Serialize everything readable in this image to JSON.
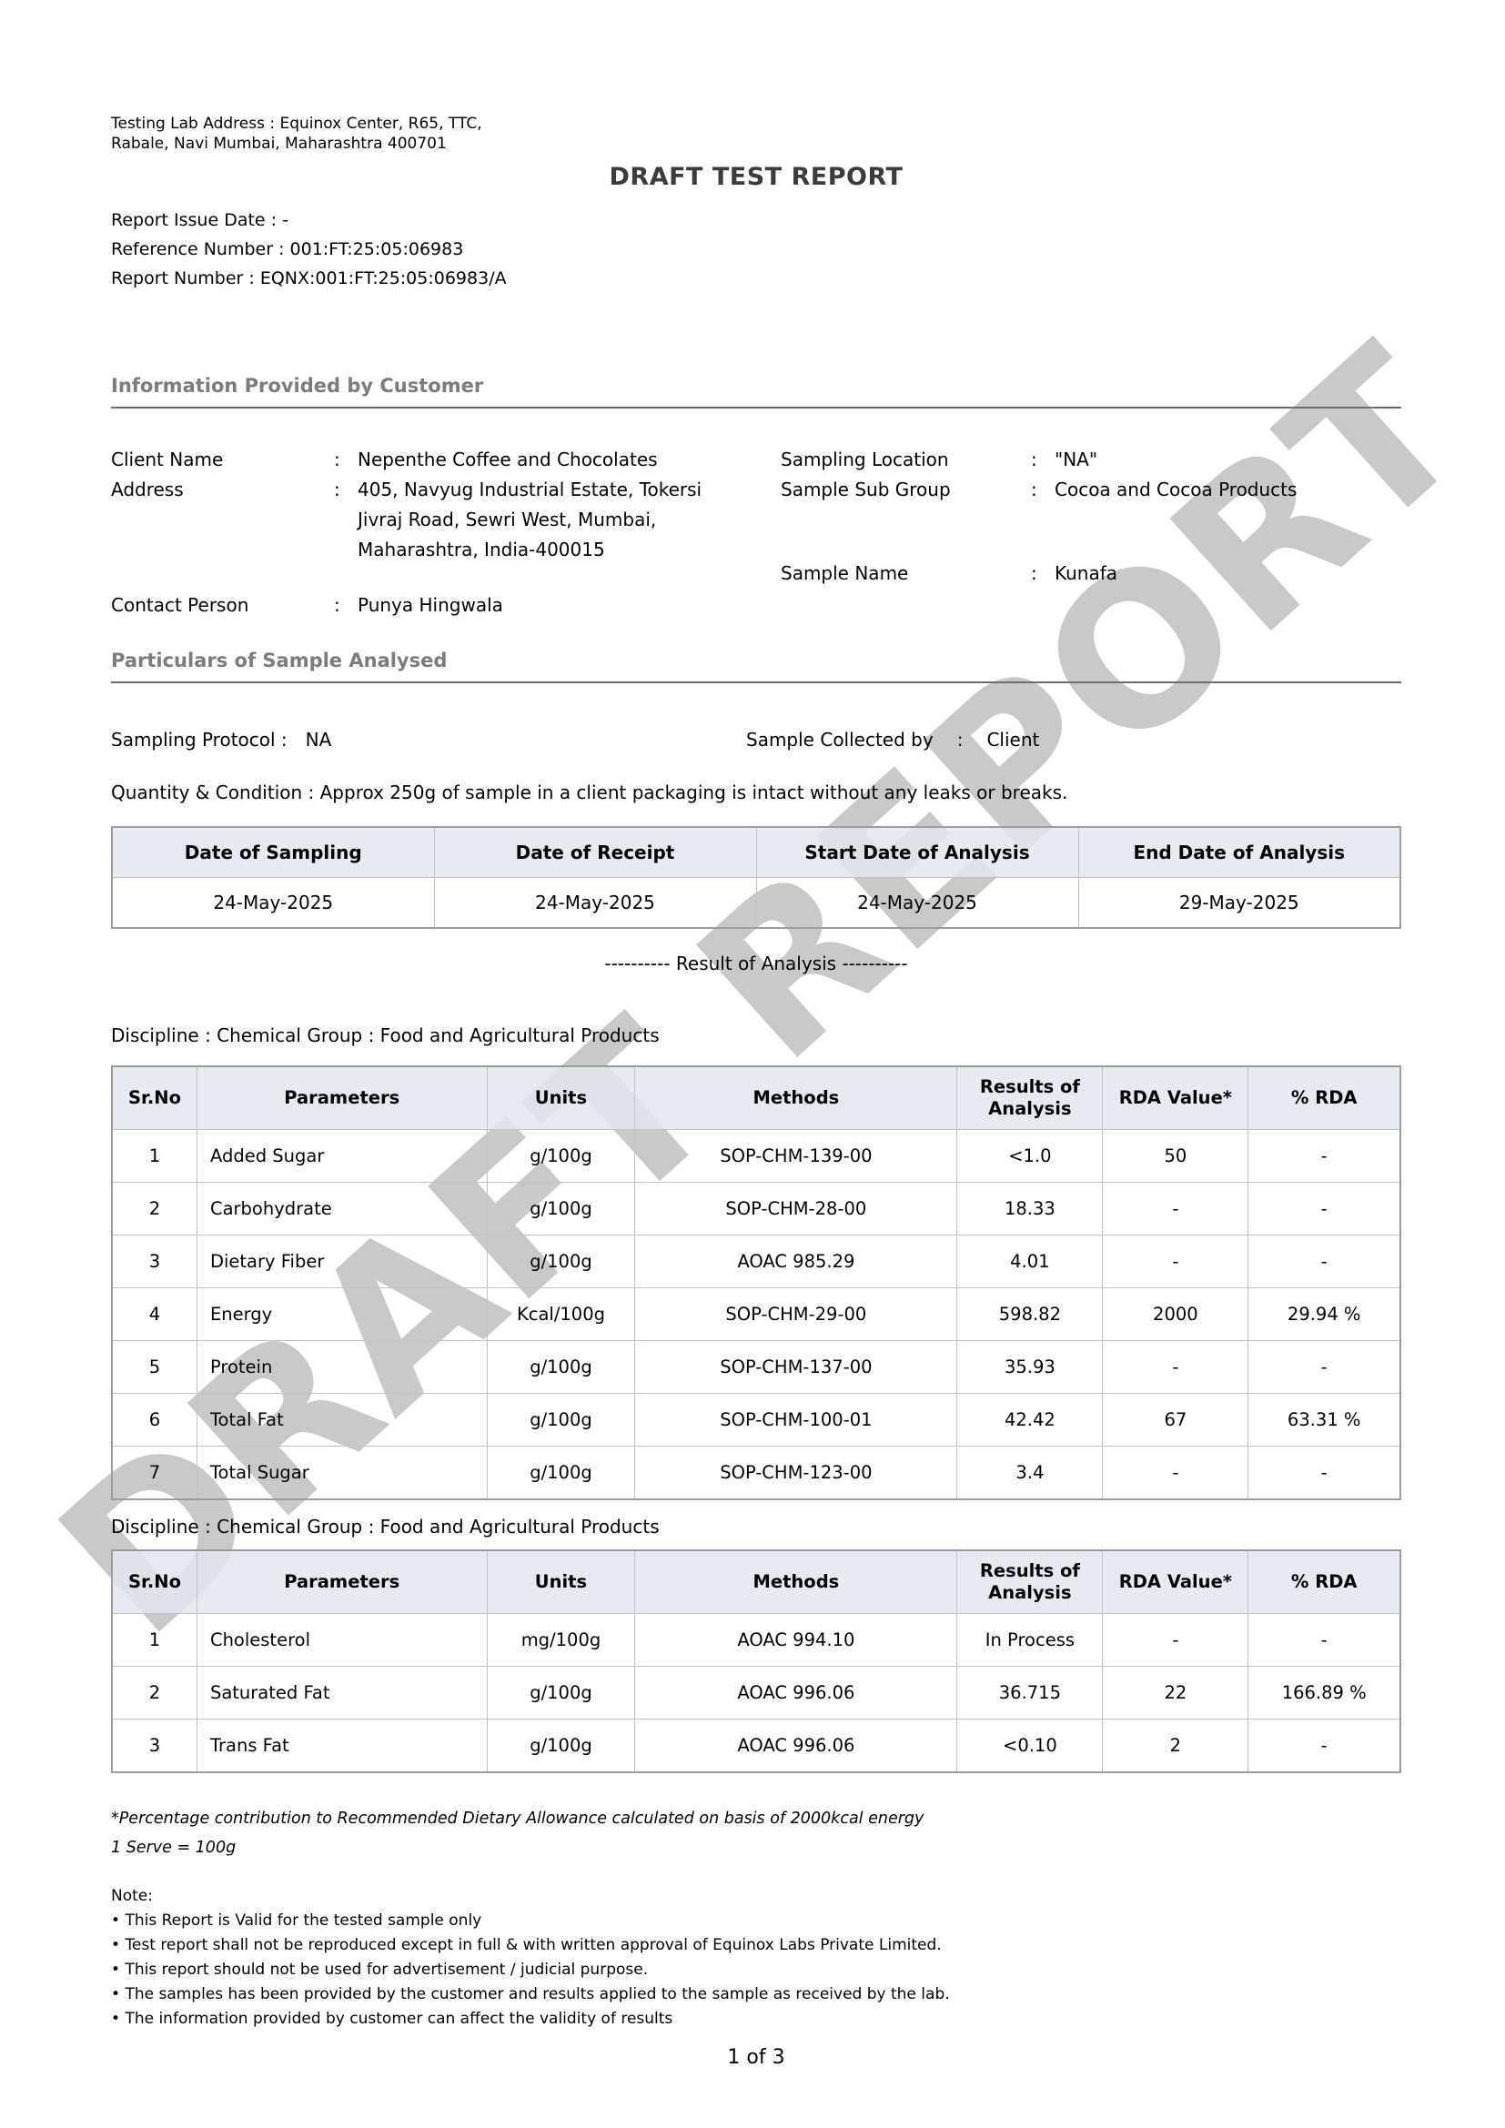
{
  "watermark": "DRAFT REPORT",
  "header": {
    "lab_address_lines": [
      "Testing Lab Address : Equinox Center, R65, TTC,",
      "Rabale, Navi Mumbai, Maharashtra 400701"
    ],
    "title": "DRAFT TEST REPORT",
    "meta": {
      "issue": "Report Issue Date : -",
      "reference": "Reference Number : 001:FT:25:05:06983",
      "report": "Report Number : EQNX:001:FT:25:05:06983/A"
    }
  },
  "customer": {
    "heading": "Information Provided by Customer",
    "colon": ":",
    "client_name_label": "Client Name",
    "client_name": "Nepenthe Coffee and Chocolates",
    "address_label": "Address",
    "address_lines": [
      "405, Navyug Industrial Estate, Tokersi",
      "Jivraj Road, Sewri West, Mumbai,",
      "Maharashtra, India-400015"
    ],
    "contact_label": "Contact Person",
    "contact": "Punya Hingwala",
    "sampling_location_label": "Sampling Location",
    "sampling_location": "\"NA\"",
    "sub_group_label": "Sample Sub Group",
    "sub_group": "Cocoa and Cocoa Products",
    "sample_name_label": "Sample Name",
    "sample_name": "Kunafa"
  },
  "particulars": {
    "heading": "Particulars of Sample Analysed",
    "protocol_label": "Sampling Protocol :",
    "protocol_value": "NA",
    "collected_label": "Sample Collected by",
    "collected_value": "Client",
    "quantity_line": "Quantity & Condition : Approx 250g of sample in a client packaging is intact without any leaks or breaks."
  },
  "dates_table": {
    "headers": [
      "Date of Sampling",
      "Date of Receipt",
      "Start Date of Analysis",
      "End Date of Analysis"
    ],
    "rows": [
      [
        "24-May-2025",
        "24-May-2025",
        "24-May-2025",
        "29-May-2025"
      ]
    ]
  },
  "result_divider": "----------  Result of Analysis  ----------",
  "results_tables": [
    {
      "discipline": "Discipline : Chemical Group : Food and Agricultural Products",
      "headers": [
        "Sr.No",
        "Parameters",
        "Units",
        "Methods",
        "Results of Analysis",
        "RDA Value*",
        "% RDA"
      ],
      "rows": [
        [
          "1",
          "Added Sugar",
          "g/100g",
          "SOP-CHM-139-00",
          "<1.0",
          "50",
          "-"
        ],
        [
          "2",
          "Carbohydrate",
          "g/100g",
          "SOP-CHM-28-00",
          "18.33",
          "-",
          "-"
        ],
        [
          "3",
          "Dietary Fiber",
          "g/100g",
          "AOAC 985.29",
          "4.01",
          "-",
          "-"
        ],
        [
          "4",
          "Energy",
          "Kcal/100g",
          "SOP-CHM-29-00",
          "598.82",
          "2000",
          "29.94 %"
        ],
        [
          "5",
          "Protein",
          "g/100g",
          "SOP-CHM-137-00",
          "35.93",
          "-",
          "-"
        ],
        [
          "6",
          "Total Fat",
          "g/100g",
          "SOP-CHM-100-01",
          "42.42",
          "67",
          "63.31 %"
        ],
        [
          "7",
          "Total Sugar",
          "g/100g",
          "SOP-CHM-123-00",
          "3.4",
          "-",
          "-"
        ]
      ]
    },
    {
      "discipline": "Discipline : Chemical Group : Food and Agricultural Products",
      "headers": [
        "Sr.No",
        "Parameters",
        "Units",
        "Methods",
        "Results of Analysis",
        "RDA Value*",
        "% RDA"
      ],
      "rows": [
        [
          "1",
          "Cholesterol",
          "mg/100g",
          "AOAC 994.10",
          "In Process",
          "-",
          "-"
        ],
        [
          "2",
          "Saturated Fat",
          "g/100g",
          "AOAC 996.06",
          "36.715",
          "22",
          "166.89 %"
        ],
        [
          "3",
          "Trans Fat",
          "g/100g",
          "AOAC 996.06",
          "<0.10",
          "2",
          "-"
        ]
      ]
    }
  ],
  "footnotes": {
    "rda": "*Percentage contribution to Recommended Dietary Allowance calculated on basis of 2000kcal energy",
    "serve": "1 Serve = 100g"
  },
  "notes": {
    "heading": "Note:",
    "items": [
      "This Report is Valid for the tested sample only",
      "Test report shall not be reproduced except in full & with written approval of Equinox Labs Private Limited.",
      "This report should not be used for advertisement / judicial purpose.",
      "The samples has been provided by the customer and results applied to the sample as received by the lab.",
      "The information provided by customer can affect the validity of results"
    ]
  },
  "page_number": "1 of 3"
}
